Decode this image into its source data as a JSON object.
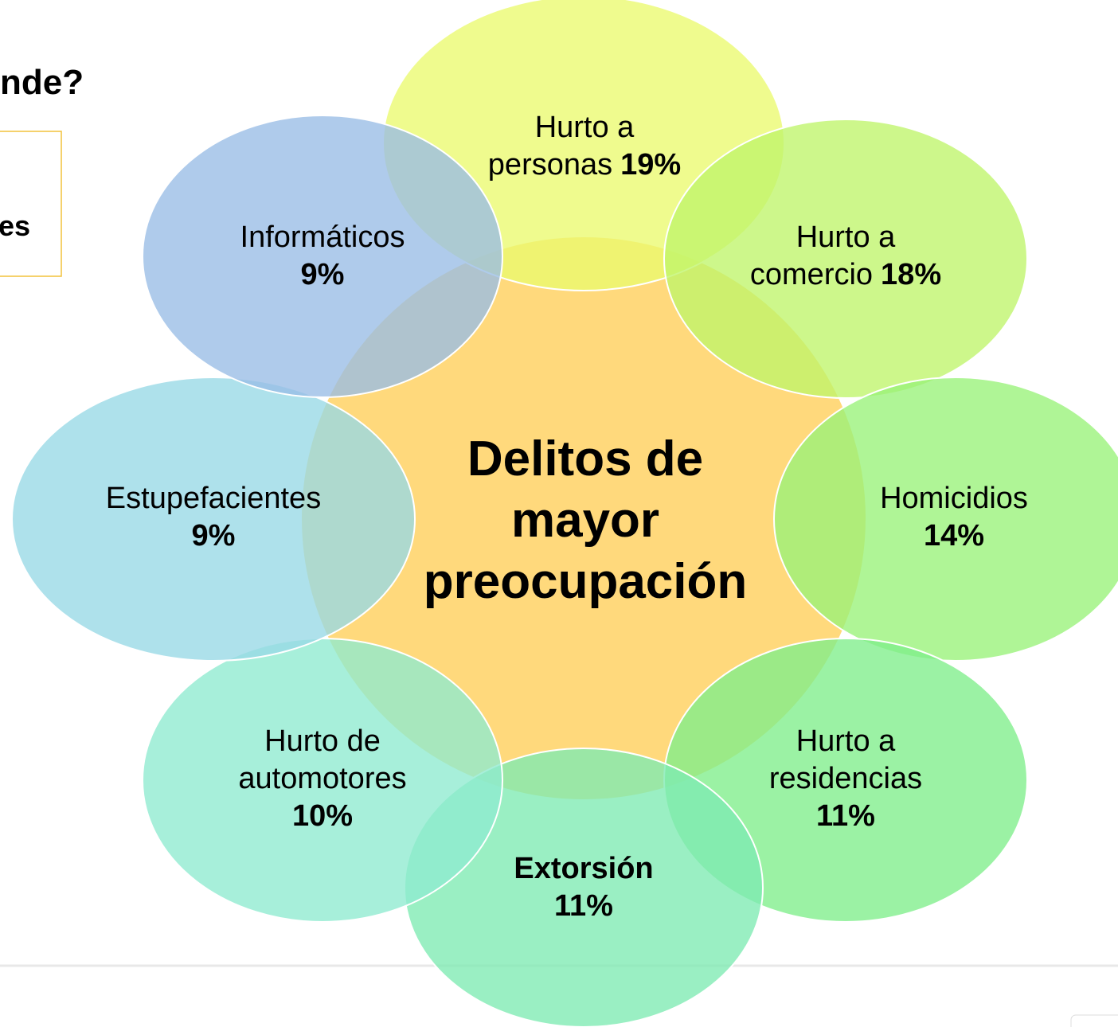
{
  "header": {
    "title": "nde?"
  },
  "box": {
    "text": "es"
  },
  "center": {
    "lines": [
      "Delitos de",
      "mayor",
      "preocupación"
    ]
  },
  "nodes": [
    {
      "lines": [
        "Hurto a",
        "personas"
      ],
      "value": "19%"
    },
    {
      "lines": [
        "Hurto a",
        "comercio"
      ],
      "value": "18%"
    },
    {
      "lines": [
        "Homicidios"
      ],
      "value": "14%"
    },
    {
      "lines": [
        "Hurto a",
        "residencias"
      ],
      "value": "11%"
    },
    {
      "lines": [
        "Extorsión"
      ],
      "value": "11%"
    },
    {
      "lines": [
        "Hurto de",
        "automotores"
      ],
      "value": "10%"
    },
    {
      "lines": [
        "Estupefacientes"
      ],
      "value": "9%"
    },
    {
      "lines": [
        "Informáticos"
      ],
      "value": "9%"
    }
  ]
}
